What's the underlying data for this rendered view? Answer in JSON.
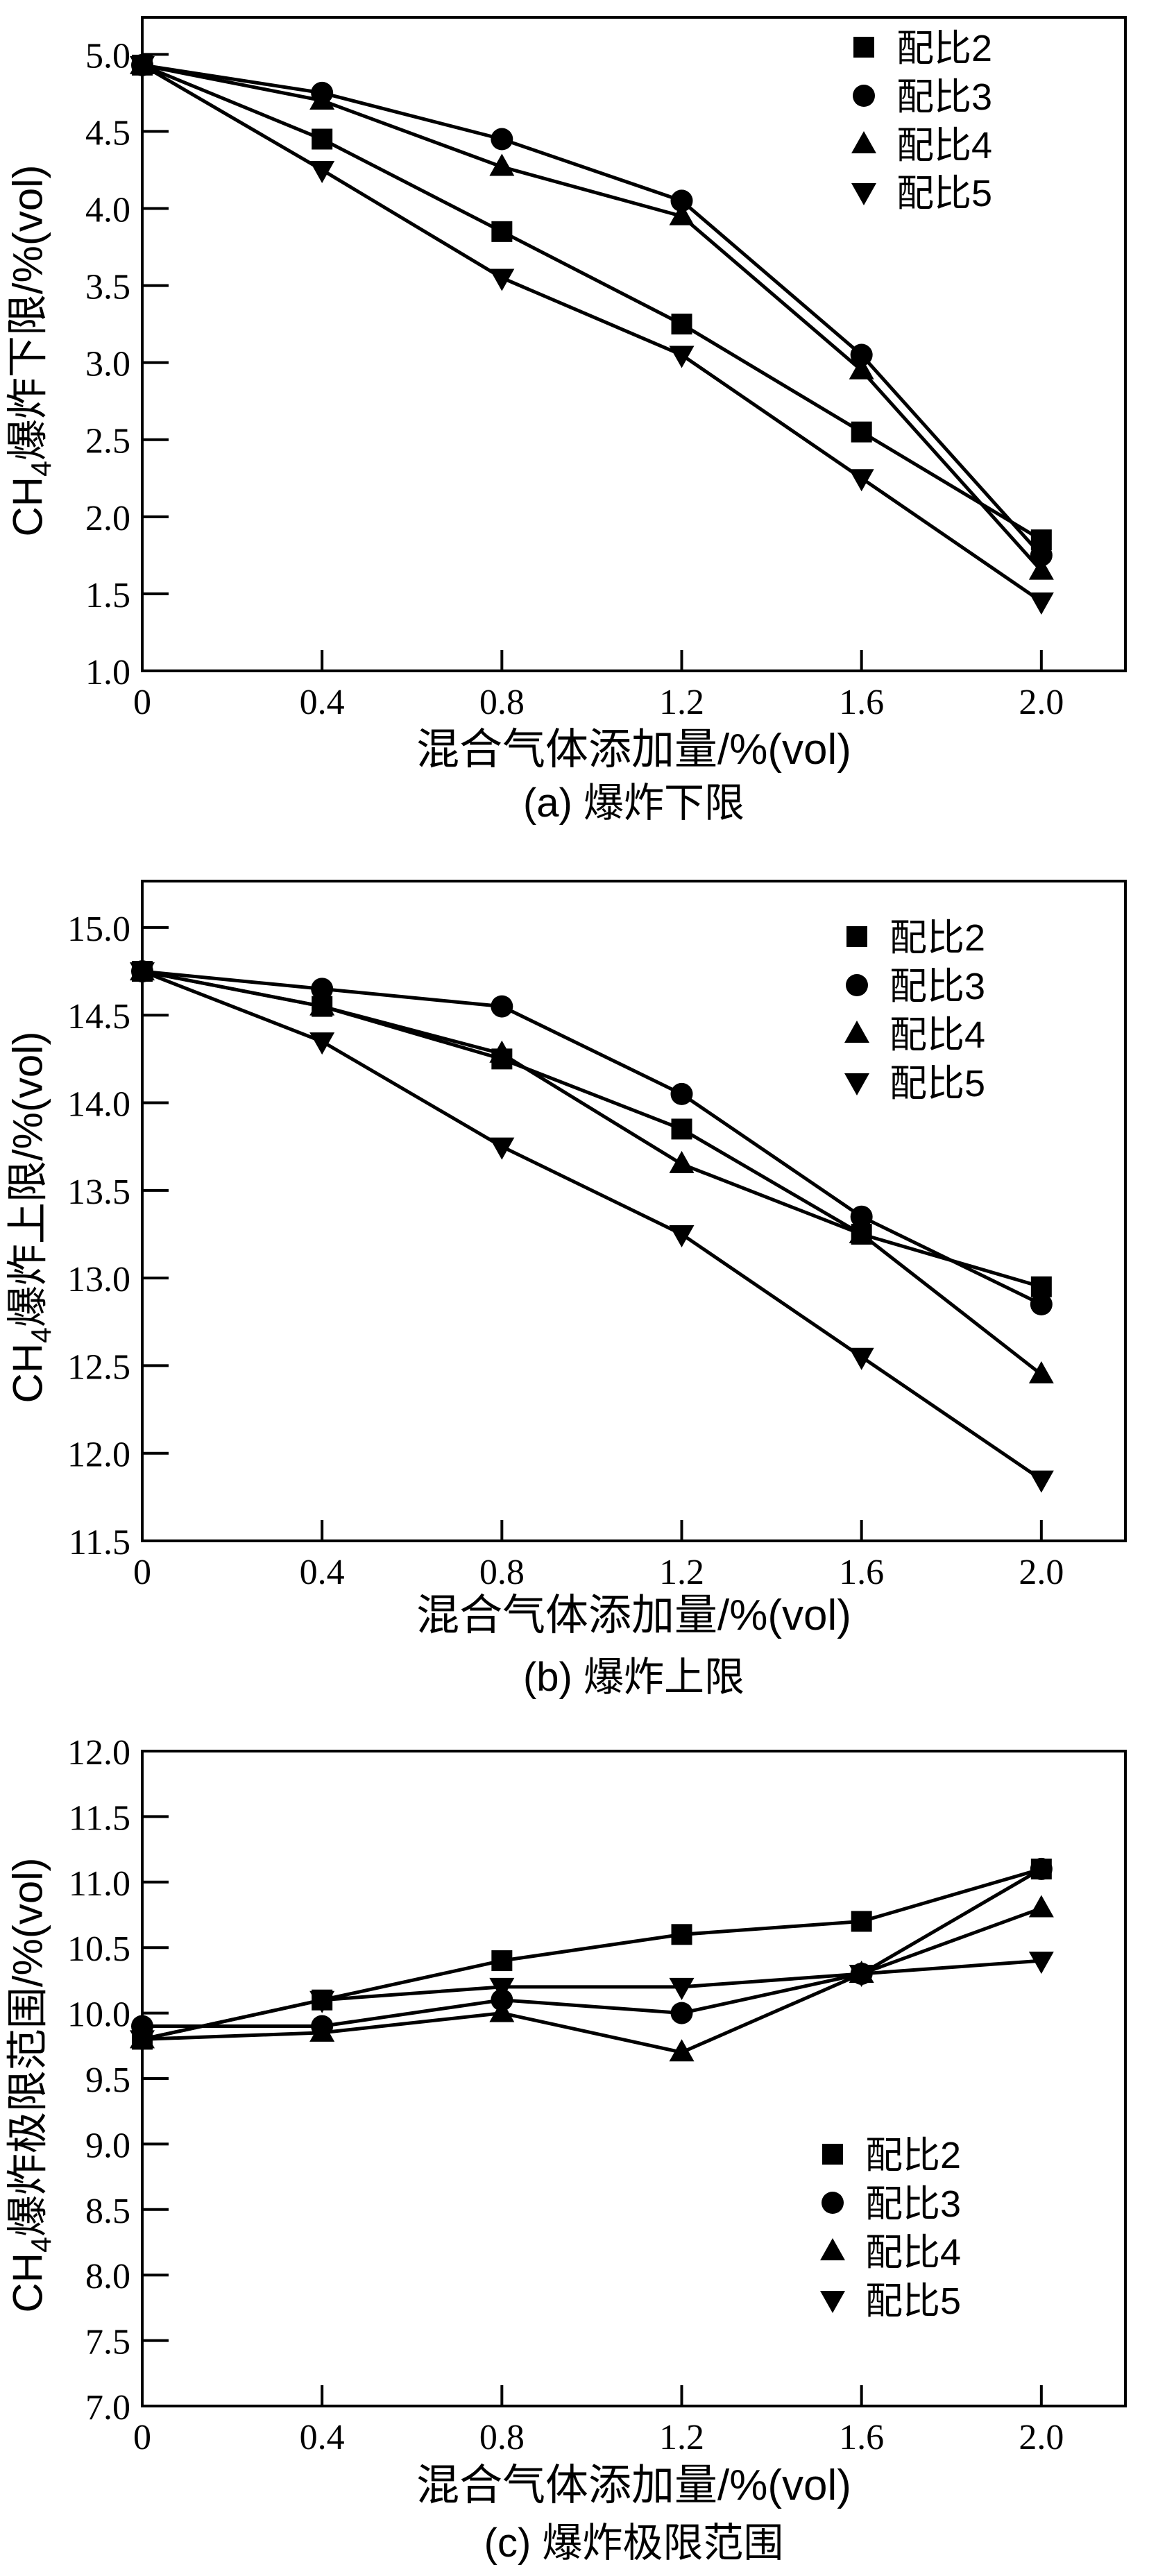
{
  "page": {
    "background": "#ffffff",
    "line_color": "#000000"
  },
  "x_axis": {
    "title": "混合气体添加量/%(vol)",
    "tick_labels": [
      "0",
      "0.4",
      "0.8",
      "1.2",
      "1.6",
      "2.0"
    ],
    "values": [
      0,
      0.4,
      0.8,
      1.2,
      1.6,
      2.0
    ]
  },
  "legend_labels": [
    "配比2",
    "配比3",
    "配比4",
    "配比5"
  ],
  "chart_data": [
    {
      "id": "a",
      "type": "line",
      "caption": "(a) 爆炸下限",
      "xlabel": "混合气体添加量/%(vol)",
      "ylabel": "CH4爆炸下限/%(vol)",
      "ylabel_parts": {
        "prefix": "CH",
        "sub": "4",
        "suffix": "爆炸下限/%(vol)"
      },
      "x": [
        0,
        0.4,
        0.8,
        1.2,
        1.6,
        2.0
      ],
      "x_tick_labels": [
        "0",
        "0.4",
        "0.8",
        "1.2",
        "1.6",
        "2.0"
      ],
      "y_tick_labels": [
        "5.0",
        "4.5",
        "4.0",
        "3.5",
        "3.0",
        "2.5",
        "2.0",
        "1.5",
        "1.0"
      ],
      "ylim": [
        1.0,
        5.24
      ],
      "xlim": [
        0,
        2.187
      ],
      "grid": false,
      "legend_position": "top-right",
      "series": [
        {
          "name": "配比2",
          "marker": "square",
          "values": [
            4.93,
            4.45,
            3.85,
            3.25,
            2.55,
            1.85
          ]
        },
        {
          "name": "配比3",
          "marker": "circle",
          "values": [
            4.93,
            4.75,
            4.45,
            4.05,
            3.05,
            1.75
          ]
        },
        {
          "name": "配比4",
          "marker": "triangle-up",
          "values": [
            4.93,
            4.7,
            4.27,
            3.95,
            2.95,
            1.65
          ]
        },
        {
          "name": "配比5",
          "marker": "triangle-down",
          "values": [
            4.93,
            4.25,
            3.55,
            3.05,
            2.25,
            1.45
          ]
        }
      ]
    },
    {
      "id": "b",
      "type": "line",
      "caption": "(b) 爆炸上限",
      "xlabel": "混合气体添加量/%(vol)",
      "ylabel": "CH4爆炸上限/%(vol)",
      "ylabel_parts": {
        "prefix": "CH",
        "sub": "4",
        "suffix": "爆炸上限/%(vol)"
      },
      "x": [
        0,
        0.4,
        0.8,
        1.2,
        1.6,
        2.0
      ],
      "x_tick_labels": [
        "0",
        "0.4",
        "0.8",
        "1.2",
        "1.6",
        "2.0"
      ],
      "y_tick_labels": [
        "15.0",
        "14.5",
        "14.0",
        "13.5",
        "13.0",
        "12.5",
        "12.0",
        "11.5"
      ],
      "ylim": [
        11.5,
        15.265
      ],
      "xlim": [
        0,
        2.187
      ],
      "grid": false,
      "legend_position": "top-right",
      "series": [
        {
          "name": "配比2",
          "marker": "square",
          "values": [
            14.75,
            14.55,
            14.25,
            13.85,
            13.25,
            12.95
          ]
        },
        {
          "name": "配比3",
          "marker": "circle",
          "values": [
            14.75,
            14.65,
            14.55,
            14.05,
            13.35,
            12.85
          ]
        },
        {
          "name": "配比4",
          "marker": "triangle-up",
          "values": [
            14.75,
            14.55,
            14.28,
            13.65,
            13.25,
            12.45
          ]
        },
        {
          "name": "配比5",
          "marker": "triangle-down",
          "values": [
            14.75,
            14.35,
            13.75,
            13.25,
            12.55,
            11.85
          ]
        }
      ]
    },
    {
      "id": "c",
      "type": "line",
      "caption": "(c) 爆炸极限范围",
      "xlabel": "混合气体添加量/%(vol)",
      "ylabel": "CH4爆炸极限范围/%(vol)",
      "ylabel_parts": {
        "prefix": "CH",
        "sub": "4",
        "suffix": "爆炸极限范围/%(vol)"
      },
      "x": [
        0,
        0.4,
        0.8,
        1.2,
        1.6,
        2.0
      ],
      "x_tick_labels": [
        "0",
        "0.4",
        "0.8",
        "1.2",
        "1.6",
        "2.0"
      ],
      "y_tick_labels": [
        "12.0",
        "11.5",
        "11.0",
        "10.5",
        "10.0",
        "9.5",
        "9.0",
        "8.5",
        "8.0",
        "7.5",
        "7.0"
      ],
      "ylim": [
        7.0,
        12.0
      ],
      "xlim": [
        0,
        2.187
      ],
      "grid": false,
      "legend_position": "middle-right",
      "series": [
        {
          "name": "配比2",
          "marker": "square",
          "values": [
            9.8,
            10.1,
            10.4,
            10.6,
            10.7,
            11.1
          ]
        },
        {
          "name": "配比3",
          "marker": "circle",
          "values": [
            9.9,
            9.9,
            10.1,
            10.0,
            10.3,
            11.1
          ]
        },
        {
          "name": "配比4",
          "marker": "triangle-up",
          "values": [
            9.8,
            9.85,
            10.0,
            9.7,
            10.3,
            10.8
          ]
        },
        {
          "name": "配比5",
          "marker": "triangle-down",
          "values": [
            9.8,
            10.1,
            10.2,
            10.2,
            10.3,
            10.4
          ]
        }
      ]
    }
  ]
}
